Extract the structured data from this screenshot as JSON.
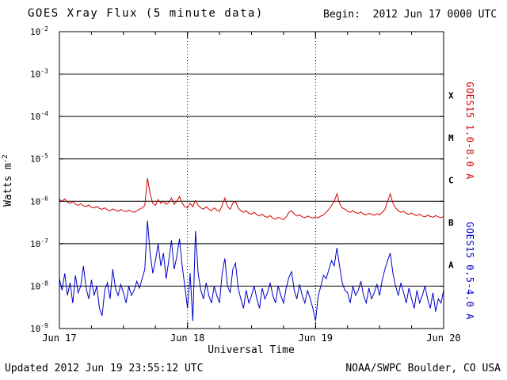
{
  "header": {
    "title": "GOES Xray Flux (5 minute data)",
    "begin_label": "Begin:  2012 Jun 17 0000 UTC"
  },
  "footer": {
    "updated": "Updated 2012 Jun 19 23:55:12 UTC",
    "credit": "NOAA/SWPC Boulder, CO USA"
  },
  "chart_data": {
    "type": "line",
    "title": "GOES Xray Flux (5 minute data)",
    "xlabel": "Universal Time",
    "ylabel": "Watts m-2",
    "ylabel_base": "Watts m",
    "ylabel_exp": "-2",
    "background": "#ffffff",
    "axis_color": "#000000",
    "x_range_hours": [
      0,
      72
    ],
    "dt_hours": 0.5,
    "x_ticks": [
      {
        "hours": 0,
        "label": "Jun 17"
      },
      {
        "hours": 24,
        "label": "Jun 18"
      },
      {
        "hours": 48,
        "label": "Jun 19"
      },
      {
        "hours": 72,
        "label": "Jun 20"
      }
    ],
    "x_minor_tick_hours": 6,
    "day_line_hours": [
      24,
      48
    ],
    "y_log_range": [
      -9,
      -2
    ],
    "y_tick_exponents": [
      -2,
      -3,
      -4,
      -5,
      -6,
      -7,
      -8,
      -9
    ],
    "grid_exponents": [
      -3,
      -4,
      -5,
      -6,
      -7,
      -8
    ],
    "flare_classes": [
      {
        "label": "X",
        "exp": -3.5
      },
      {
        "label": "M",
        "exp": -4.5
      },
      {
        "label": "C",
        "exp": -5.5
      },
      {
        "label": "B",
        "exp": -6.5
      },
      {
        "label": "A",
        "exp": -7.5
      }
    ],
    "series": [
      {
        "name": "GOES15 1.0-8.0 A",
        "color": "#d40000",
        "values": [
          1.1e-06,
          1e-06,
          1.15e-06,
          9.5e-07,
          9e-07,
          9.8e-07,
          8.5e-07,
          8e-07,
          8.8e-07,
          7.8e-07,
          7.5e-07,
          8.2e-07,
          7.2e-07,
          7e-07,
          7.6e-07,
          6.8e-07,
          6.5e-07,
          7e-07,
          6.3e-07,
          6e-07,
          6.6e-07,
          6.2e-07,
          5.8e-07,
          6.4e-07,
          6e-07,
          5.7e-07,
          6.2e-07,
          5.8e-07,
          5.5e-07,
          6e-07,
          6.5e-07,
          7e-07,
          8e-07,
          3.5e-06,
          1.5e-06,
          9e-07,
          8e-07,
          1.1e-06,
          9e-07,
          1e-06,
          8.5e-07,
          9.5e-07,
          1.2e-06,
          8.5e-07,
          1e-06,
          1.3e-06,
          9e-07,
          7.5e-07,
          7e-07,
          9e-07,
          7.5e-07,
          1.05e-06,
          8e-07,
          7e-07,
          6.5e-07,
          7.5e-07,
          6.5e-07,
          6e-07,
          7e-07,
          6.2e-07,
          5.8e-07,
          8e-07,
          1.2e-06,
          7.5e-07,
          6.5e-07,
          9e-07,
          1e-06,
          7e-07,
          6e-07,
          5.5e-07,
          6e-07,
          5.2e-07,
          5e-07,
          5.5e-07,
          4.8e-07,
          4.5e-07,
          5e-07,
          4.4e-07,
          4.2e-07,
          4.6e-07,
          4e-07,
          3.8e-07,
          4.2e-07,
          3.9e-07,
          3.7e-07,
          4.3e-07,
          5.5e-07,
          6e-07,
          5e-07,
          4.5e-07,
          4.8e-07,
          4.3e-07,
          4.1e-07,
          4.5e-07,
          4.2e-07,
          4e-07,
          4.3e-07,
          4.1e-07,
          4.5e-07,
          4.8e-07,
          5.5e-07,
          6.5e-07,
          8e-07,
          1e-06,
          1.5e-06,
          9e-07,
          7e-07,
          6.5e-07,
          5.8e-07,
          5.5e-07,
          6e-07,
          5.4e-07,
          5.2e-07,
          5.6e-07,
          5e-07,
          4.8e-07,
          5.2e-07,
          4.9e-07,
          4.7e-07,
          5.1e-07,
          4.8e-07,
          5.5e-07,
          6.5e-07,
          1e-06,
          1.5e-06,
          9e-07,
          7e-07,
          6e-07,
          5.5e-07,
          5.8e-07,
          5.2e-07,
          4.9e-07,
          5.3e-07,
          4.8e-07,
          4.6e-07,
          5e-07,
          4.5e-07,
          4.3e-07,
          4.7e-07,
          4.4e-07,
          4.2e-07,
          4.6e-07,
          4.3e-07,
          4.1e-07,
          4.4e-07
        ]
      },
      {
        "name": "GOES15 0.5-4.0 A",
        "color": "#0000cc",
        "values": [
          1.5e-08,
          8e-09,
          2e-08,
          6e-09,
          1.2e-08,
          4e-09,
          1.8e-08,
          7e-09,
          1e-08,
          3e-08,
          9e-09,
          5e-09,
          1.4e-08,
          6e-09,
          1e-08,
          3e-09,
          2e-09,
          8e-09,
          1.2e-08,
          5e-09,
          2.5e-08,
          9e-09,
          6e-09,
          1.1e-08,
          7e-09,
          4e-09,
          1e-08,
          6e-09,
          8e-09,
          1.3e-08,
          9e-09,
          1.5e-08,
          2.5e-08,
          3.5e-07,
          6e-08,
          2e-08,
          4e-08,
          1e-07,
          3e-08,
          6e-08,
          1.5e-08,
          4e-08,
          1.2e-07,
          2.5e-08,
          5e-08,
          1.3e-07,
          3e-08,
          1e-08,
          3e-09,
          2e-08,
          1.5e-09,
          2e-07,
          2e-08,
          8e-09,
          5e-09,
          1.2e-08,
          6e-09,
          4e-09,
          1e-08,
          6e-09,
          4e-09,
          2e-08,
          4.5e-08,
          1e-08,
          7e-09,
          2.5e-08,
          3.5e-08,
          9e-09,
          5e-09,
          3e-09,
          8e-09,
          4e-09,
          6e-09,
          1e-08,
          5e-09,
          3e-09,
          9e-09,
          5e-09,
          7e-09,
          1.2e-08,
          6e-09,
          4e-09,
          1e-08,
          6e-09,
          4e-09,
          9e-09,
          1.6e-08,
          2.2e-08,
          8e-09,
          5e-09,
          1.1e-08,
          6e-09,
          4e-09,
          8e-09,
          5e-09,
          3e-09,
          1.5e-09,
          6e-09,
          1e-08,
          1.8e-08,
          1.5e-08,
          2.5e-08,
          4e-08,
          3e-08,
          8e-08,
          3e-08,
          1.2e-08,
          8e-09,
          7e-09,
          4e-09,
          1e-08,
          6e-09,
          8e-09,
          1.3e-08,
          6e-09,
          4e-09,
          9e-09,
          5e-09,
          7e-09,
          1.1e-08,
          6e-09,
          1.4e-08,
          2.5e-08,
          4e-08,
          6e-08,
          2e-08,
          1e-08,
          6e-09,
          1.2e-08,
          7e-09,
          4e-09,
          9e-09,
          5e-09,
          3e-09,
          8e-09,
          4e-09,
          6e-09,
          1e-08,
          5e-09,
          3e-09,
          7e-09,
          2.5e-09,
          5e-09,
          4e-09,
          8e-09
        ]
      }
    ]
  }
}
